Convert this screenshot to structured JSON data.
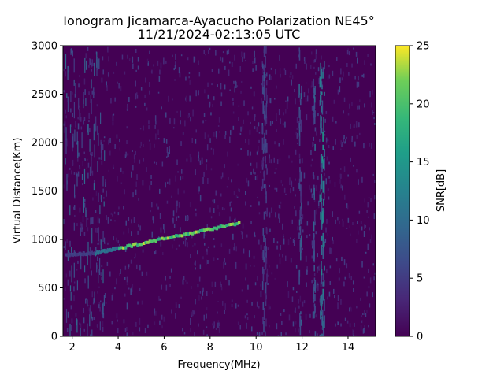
{
  "chart_data": {
    "type": "heatmap",
    "title_line1": "Ionogram Jicamarca-Ayacucho Polarization NE45°",
    "title_line2": "11/21/2024-02:13:05 UTC",
    "xlabel": "Frequency(MHz)",
    "ylabel": "Virtual Distance(Km)",
    "colorbar_label": "SNR[dB]",
    "xlim": [
      1.6,
      15.2
    ],
    "ylim": [
      0,
      3000
    ],
    "xticks": [
      2,
      4,
      6,
      8,
      10,
      12,
      14
    ],
    "xtick_labels": [
      "2",
      "4",
      "6",
      "8",
      "10",
      "12",
      "14"
    ],
    "yticks": [
      0,
      500,
      1000,
      1500,
      2000,
      2500,
      3000
    ],
    "ytick_labels": [
      "0",
      "500",
      "1000",
      "1500",
      "2000",
      "2500",
      "3000"
    ],
    "colorbar_range": [
      0,
      25
    ],
    "colorbar_ticks": [
      0,
      5,
      10,
      15,
      20,
      25
    ],
    "colorbar_tick_labels": [
      "0",
      "5",
      "10",
      "15",
      "20",
      "25"
    ],
    "colormap": "viridis",
    "background_snr": 1,
    "traces": [
      {
        "name": "echo-trace",
        "freq_start": 1.7,
        "freq_end": 3.0,
        "dist_start": 840,
        "dist_end": 860,
        "snr": 6
      },
      {
        "name": "echo-trace",
        "freq_start": 3.0,
        "freq_end": 4.0,
        "dist_start": 860,
        "dist_end": 910,
        "snr": 12
      },
      {
        "name": "echo-trace",
        "freq_start": 4.0,
        "freq_end": 9.2,
        "dist_start": 910,
        "dist_end": 1170,
        "snr": 24
      }
    ],
    "interference_columns": [
      {
        "freq": 10.3,
        "snr": 8
      },
      {
        "freq": 10.4,
        "snr": 6
      },
      {
        "freq": 11.9,
        "snr": 9
      },
      {
        "freq": 12.5,
        "snr": 10
      },
      {
        "freq": 12.8,
        "snr": 14
      },
      {
        "freq": 12.9,
        "snr": 15
      }
    ]
  }
}
